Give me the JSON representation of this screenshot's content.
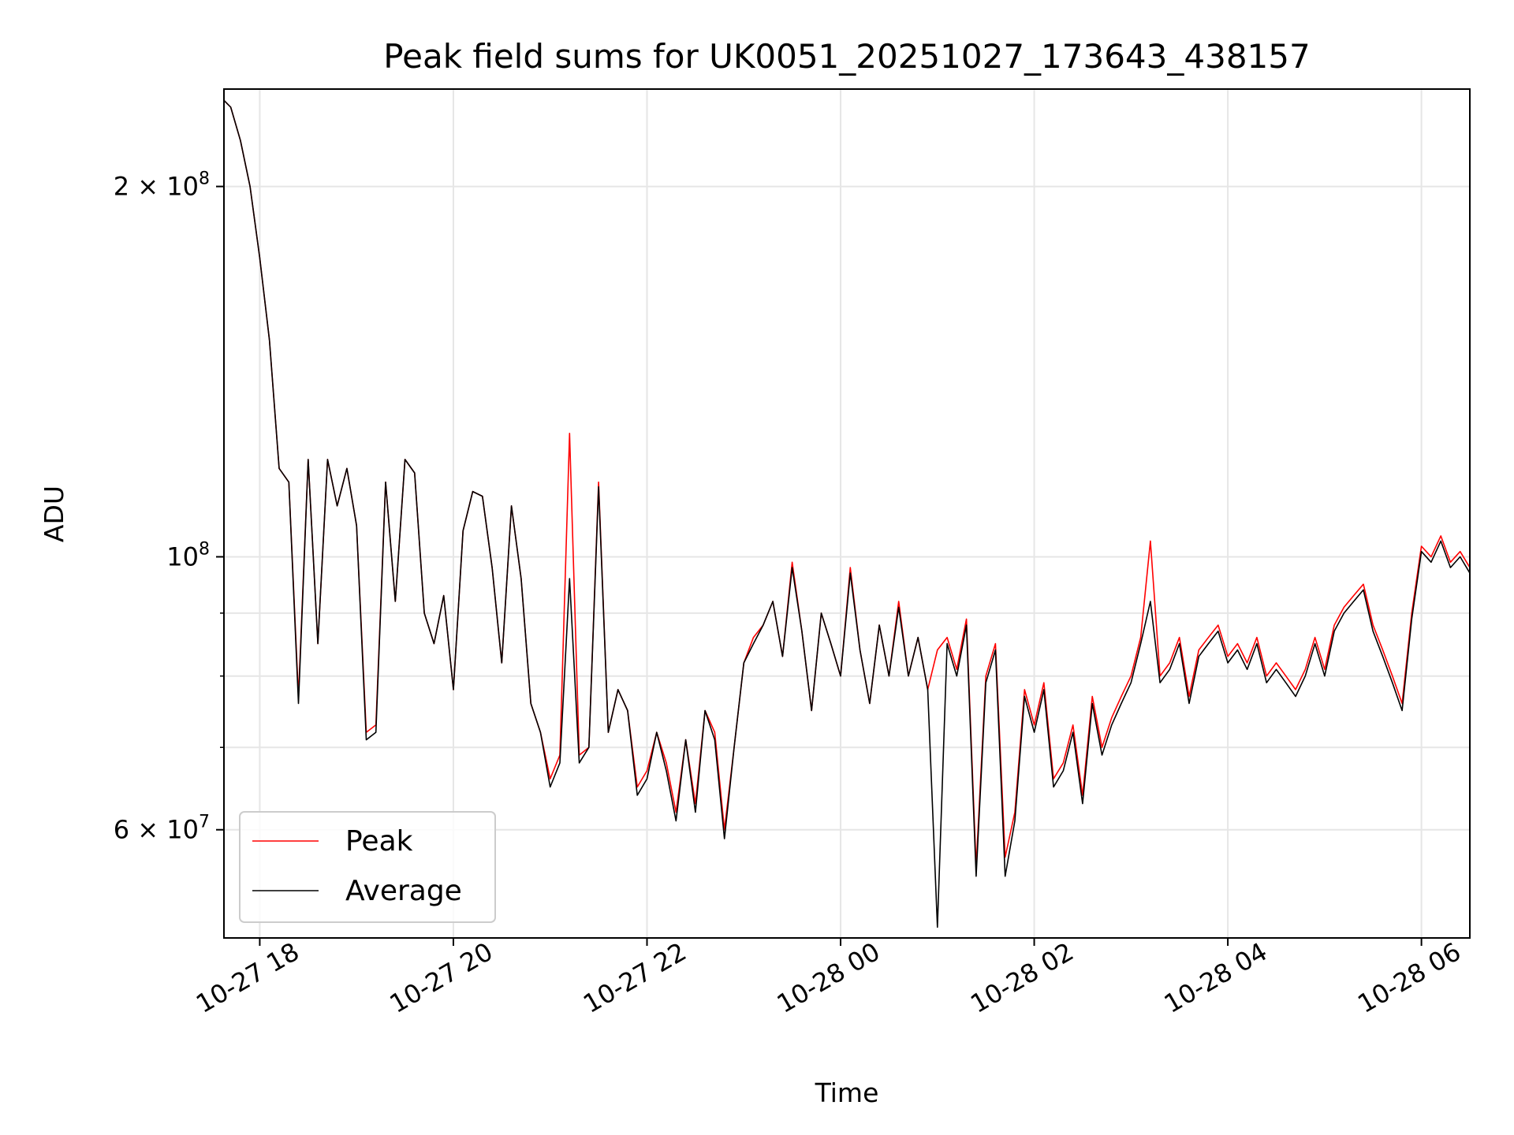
{
  "chart_data": {
    "type": "line",
    "title": "Peak field sums for UK0051_20251027_173643_438157",
    "xlabel": "Time",
    "ylabel": "ADU",
    "y_scale": "log",
    "ylim": [
      49000000,
      240000000
    ],
    "xlim_hours": [
      -0.37,
      12.5
    ],
    "x_ticks": [
      {
        "hour": 0,
        "label": "10-27 18"
      },
      {
        "hour": 2,
        "label": "10-27 20"
      },
      {
        "hour": 4,
        "label": "10-27 22"
      },
      {
        "hour": 6,
        "label": "10-28 00"
      },
      {
        "hour": 8,
        "label": "10-28 02"
      },
      {
        "hour": 10,
        "label": "10-28 04"
      },
      {
        "hour": 12,
        "label": "10-28 06"
      }
    ],
    "y_ticks_major": [
      {
        "value": 60000000,
        "label": "6 × 10⁷",
        "mantissa": "6",
        "exp": "7"
      },
      {
        "value": 100000000,
        "label": "10⁸",
        "mantissa": "",
        "exp": "8"
      },
      {
        "value": 200000000,
        "label": "2 × 10⁸",
        "mantissa": "2",
        "exp": "8"
      }
    ],
    "y_ticks_minor": [
      70000000,
      80000000,
      90000000
    ],
    "grid": true,
    "legend_position": "lower-left",
    "series": [
      {
        "name": "Peak",
        "color": "#ff0000",
        "x_hours": [
          -0.37,
          -0.3,
          -0.2,
          -0.1,
          0.0,
          0.1,
          0.2,
          0.3,
          0.4,
          0.5,
          0.6,
          0.7,
          0.8,
          0.9,
          1.0,
          1.1,
          1.2,
          1.3,
          1.4,
          1.5,
          1.6,
          1.7,
          1.8,
          1.9,
          2.0,
          2.1,
          2.2,
          2.3,
          2.4,
          2.5,
          2.6,
          2.7,
          2.8,
          2.9,
          3.0,
          3.1,
          3.2,
          3.3,
          3.4,
          3.5,
          3.6,
          3.7,
          3.8,
          3.9,
          4.0,
          4.1,
          4.2,
          4.3,
          4.4,
          4.5,
          4.6,
          4.7,
          4.8,
          4.9,
          5.0,
          5.1,
          5.2,
          5.3,
          5.4,
          5.5,
          5.6,
          5.7,
          5.8,
          5.9,
          6.0,
          6.1,
          6.2,
          6.3,
          6.4,
          6.5,
          6.6,
          6.7,
          6.8,
          6.9,
          7.0,
          7.1,
          7.2,
          7.3,
          7.4,
          7.5,
          7.6,
          7.7,
          7.8,
          7.9,
          8.0,
          8.1,
          8.2,
          8.3,
          8.4,
          8.5,
          8.6,
          8.7,
          8.8,
          8.9,
          9.0,
          9.1,
          9.2,
          9.3,
          9.4,
          9.5,
          9.6,
          9.7,
          9.8,
          9.9,
          10.0,
          10.1,
          10.2,
          10.3,
          10.4,
          10.5,
          10.6,
          10.7,
          10.8,
          10.9,
          11.0,
          11.1,
          11.2,
          11.3,
          11.4,
          11.5,
          11.6,
          11.7,
          11.8,
          11.9,
          12.0,
          12.1,
          12.2,
          12.3,
          12.4,
          12.5
        ],
        "values": [
          235000000,
          232000000,
          218000000,
          200000000,
          175000000,
          150000000,
          118000000,
          115000000,
          77000000,
          120000000,
          85000000,
          120000000,
          110000000,
          118000000,
          106000000,
          72000000,
          73000000,
          115000000,
          92000000,
          120000000,
          117000000,
          90000000,
          85000000,
          93000000,
          78000000,
          105000000,
          113000000,
          112000000,
          98000000,
          82000000,
          110000000,
          96000000,
          76000000,
          72000000,
          66000000,
          69000000,
          126000000,
          69000000,
          70000000,
          115000000,
          72000000,
          78000000,
          75000000,
          65000000,
          67000000,
          72000000,
          68000000,
          62000000,
          71000000,
          63000000,
          75000000,
          72000000,
          60000000,
          70000000,
          82000000,
          86000000,
          88000000,
          92000000,
          83000000,
          99000000,
          87000000,
          75000000,
          90000000,
          85000000,
          80000000,
          98000000,
          84000000,
          76000000,
          88000000,
          80000000,
          92000000,
          80000000,
          86000000,
          78000000,
          84000000,
          86000000,
          81000000,
          89000000,
          56000000,
          80000000,
          85000000,
          57000000,
          62000000,
          78000000,
          73000000,
          79000000,
          66000000,
          68000000,
          73000000,
          64000000,
          77000000,
          70000000,
          74000000,
          77000000,
          80000000,
          86000000,
          103000000,
          80000000,
          82000000,
          86000000,
          77000000,
          84000000,
          86000000,
          88000000,
          83000000,
          85000000,
          82000000,
          86000000,
          80000000,
          82000000,
          80000000,
          78000000,
          81000000,
          86000000,
          81000000,
          88000000,
          91000000,
          93000000,
          95000000,
          88000000,
          84000000,
          80000000,
          76000000,
          90000000,
          102000000,
          100000000,
          104000000,
          99000000,
          101000000,
          98000000
        ]
      },
      {
        "name": "Average",
        "color": "#000000",
        "x_hours": [
          -0.37,
          -0.3,
          -0.2,
          -0.1,
          0.0,
          0.1,
          0.2,
          0.3,
          0.4,
          0.5,
          0.6,
          0.7,
          0.8,
          0.9,
          1.0,
          1.1,
          1.2,
          1.3,
          1.4,
          1.5,
          1.6,
          1.7,
          1.8,
          1.9,
          2.0,
          2.1,
          2.2,
          2.3,
          2.4,
          2.5,
          2.6,
          2.7,
          2.8,
          2.9,
          3.0,
          3.1,
          3.2,
          3.3,
          3.4,
          3.5,
          3.6,
          3.7,
          3.8,
          3.9,
          4.0,
          4.1,
          4.2,
          4.3,
          4.4,
          4.5,
          4.6,
          4.7,
          4.8,
          4.9,
          5.0,
          5.1,
          5.2,
          5.3,
          5.4,
          5.5,
          5.6,
          5.7,
          5.8,
          5.9,
          6.0,
          6.1,
          6.2,
          6.3,
          6.4,
          6.5,
          6.6,
          6.7,
          6.8,
          6.9,
          7.0,
          7.1,
          7.2,
          7.3,
          7.4,
          7.5,
          7.6,
          7.7,
          7.8,
          7.9,
          8.0,
          8.1,
          8.2,
          8.3,
          8.4,
          8.5,
          8.6,
          8.7,
          8.8,
          8.9,
          9.0,
          9.1,
          9.2,
          9.3,
          9.4,
          9.5,
          9.6,
          9.7,
          9.8,
          9.9,
          10.0,
          10.1,
          10.2,
          10.3,
          10.4,
          10.5,
          10.6,
          10.7,
          10.8,
          10.9,
          11.0,
          11.1,
          11.2,
          11.3,
          11.4,
          11.5,
          11.6,
          11.7,
          11.8,
          11.9,
          12.0,
          12.1,
          12.2,
          12.3,
          12.4,
          12.5
        ],
        "values": [
          235000000,
          232000000,
          218000000,
          200000000,
          175000000,
          150000000,
          118000000,
          115000000,
          76000000,
          120000000,
          85000000,
          120000000,
          110000000,
          118000000,
          106000000,
          71000000,
          72000000,
          115000000,
          92000000,
          120000000,
          117000000,
          90000000,
          85000000,
          93000000,
          78000000,
          105000000,
          113000000,
          112000000,
          98000000,
          82000000,
          110000000,
          96000000,
          76000000,
          72000000,
          65000000,
          68000000,
          96000000,
          68000000,
          70000000,
          114000000,
          72000000,
          78000000,
          75000000,
          64000000,
          66000000,
          72000000,
          67000000,
          61000000,
          71000000,
          62000000,
          75000000,
          71000000,
          59000000,
          70000000,
          82000000,
          85000000,
          88000000,
          92000000,
          83000000,
          98000000,
          87000000,
          75000000,
          90000000,
          85000000,
          80000000,
          97000000,
          84000000,
          76000000,
          88000000,
          80000000,
          91000000,
          80000000,
          86000000,
          78000000,
          50000000,
          85000000,
          80000000,
          88000000,
          55000000,
          79000000,
          84000000,
          55000000,
          61000000,
          77000000,
          72000000,
          78000000,
          65000000,
          67000000,
          72000000,
          63000000,
          76000000,
          69000000,
          73000000,
          76000000,
          79000000,
          85000000,
          92000000,
          79000000,
          81000000,
          85000000,
          76000000,
          83000000,
          85000000,
          87000000,
          82000000,
          84000000,
          81000000,
          85000000,
          79000000,
          81000000,
          79000000,
          77000000,
          80000000,
          85000000,
          80000000,
          87000000,
          90000000,
          92000000,
          94000000,
          87000000,
          83000000,
          79000000,
          75000000,
          89000000,
          101000000,
          99000000,
          103000000,
          98000000,
          100000000,
          97000000
        ]
      }
    ]
  }
}
